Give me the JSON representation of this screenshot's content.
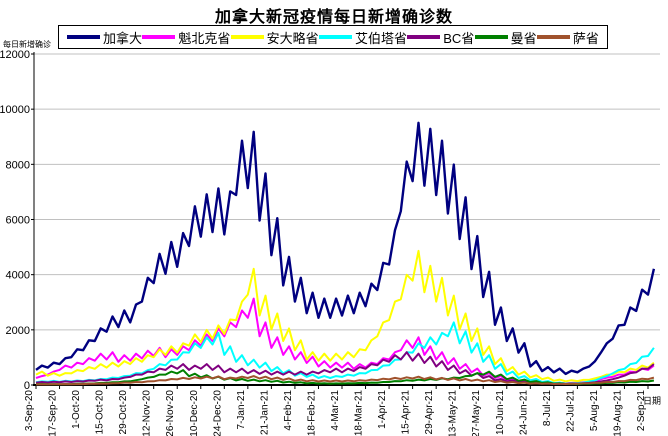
{
  "title": "加拿大新冠疫情每日新增确诊数",
  "colors": {
    "background": "#ffffff",
    "grid": "#c0c0c0",
    "axis": "#000000",
    "text": "#000000"
  },
  "chart_data": {
    "type": "line",
    "title": "加拿大新冠疫情每日新增确诊数",
    "ylabel": "每日新增确诊",
    "xlabel": "日期",
    "ylim": [
      0,
      12000
    ],
    "yticks": [
      0,
      2000,
      4000,
      6000,
      8000,
      10000,
      12000
    ],
    "grid": "horizontal-only",
    "legend_position": "top",
    "x_start_date": "3-Sep-20",
    "x_end_date": "2-Sep-21",
    "xtick_interval_days": 14,
    "xtick_labels": [
      "3-Sep-20",
      "17-Sep-20",
      "1-Oct-20",
      "15-Oct-20",
      "29-Oct-20",
      "12-Nov-20",
      "26-Nov-20",
      "10-Dec-20",
      "24-Dec-20",
      "7-Jan-21",
      "21-Jan-21",
      "4-Feb-21",
      "18-Feb-21",
      "4-Mar-21",
      "18-Mar-21",
      "1-Apr-21",
      "15-Apr-21",
      "29-Apr-21",
      "13-May-21",
      "27-May-21",
      "10-Jun-21",
      "24-Jun-21",
      "8-Jul-21",
      "22-Jul-21",
      "5-Aug-21",
      "19-Aug-21",
      "2-Sep-21"
    ],
    "sample_interval_days": 7,
    "daily_oscillation": {
      "low_factor": 0.84,
      "high_factor": 1.08
    },
    "series": [
      {
        "id": "canada",
        "name": "加拿大",
        "color": "#000080",
        "weekly_values": [
          650,
          750,
          900,
          1200,
          1500,
          1900,
          2300,
          2500,
          2700,
          3600,
          4400,
          4800,
          5100,
          6000,
          6400,
          6600,
          6500,
          8200,
          8500,
          7100,
          5600,
          4300,
          3600,
          3100,
          2900,
          2900,
          3000,
          3100,
          3400,
          4100,
          5200,
          7500,
          8800,
          8600,
          8200,
          7400,
          6300,
          5000,
          3800,
          2600,
          1900,
          1400,
          800,
          600,
          550,
          480,
          550,
          800,
          1400,
          2000,
          2600,
          3200,
          3900
        ]
      },
      {
        "id": "quebec",
        "name": "魁北克省",
        "color": "#ff00ff",
        "weekly_values": [
          300,
          450,
          650,
          750,
          900,
          1050,
          1100,
          1000,
          1050,
          1150,
          1250,
          1200,
          1300,
          1500,
          1700,
          1900,
          2100,
          2500,
          2900,
          2100,
          1600,
          1300,
          1100,
          950,
          800,
          750,
          750,
          700,
          750,
          900,
          1100,
          1500,
          1600,
          1300,
          1100,
          900,
          700,
          550,
          400,
          300,
          200,
          150,
          120,
          90,
          70,
          70,
          90,
          130,
          250,
          350,
          450,
          550,
          650
        ]
      },
      {
        "id": "ontario",
        "name": "安大略省",
        "color": "#ffff00",
        "weekly_values": [
          450,
          400,
          400,
          500,
          600,
          700,
          750,
          800,
          900,
          1000,
          1200,
          1300,
          1400,
          1700,
          1850,
          2000,
          2200,
          2800,
          3900,
          3000,
          2400,
          1900,
          1500,
          1100,
          1050,
          1050,
          1100,
          1200,
          1500,
          2100,
          2800,
          3700,
          4500,
          4000,
          3600,
          3000,
          2400,
          1900,
          1300,
          900,
          600,
          450,
          330,
          250,
          180,
          160,
          170,
          220,
          350,
          450,
          550,
          650,
          750
        ]
      },
      {
        "id": "alberta",
        "name": "艾伯塔省",
        "color": "#00ffff",
        "weekly_values": [
          120,
          140,
          140,
          150,
          170,
          200,
          250,
          300,
          400,
          500,
          700,
          850,
          1100,
          1400,
          1600,
          1750,
          1300,
          1000,
          850,
          750,
          600,
          500,
          400,
          350,
          300,
          300,
          350,
          400,
          500,
          650,
          850,
          1100,
          1400,
          1600,
          1750,
          2100,
          1800,
          1400,
          1000,
          700,
          450,
          300,
          200,
          130,
          80,
          60,
          80,
          150,
          300,
          500,
          700,
          950,
          1250
        ]
      },
      {
        "id": "bc",
        "name": "BC省",
        "color": "#800080",
        "weekly_values": [
          100,
          110,
          120,
          130,
          150,
          180,
          200,
          250,
          350,
          450,
          550,
          650,
          700,
          650,
          700,
          650,
          550,
          550,
          500,
          480,
          450,
          450,
          450,
          450,
          500,
          550,
          550,
          600,
          700,
          850,
          1000,
          1100,
          1050,
          950,
          800,
          650,
          500,
          400,
          300,
          200,
          150,
          120,
          100,
          70,
          50,
          45,
          60,
          90,
          150,
          250,
          400,
          550,
          700
        ]
      },
      {
        "id": "manitoba",
        "name": "曼省",
        "color": "#008000",
        "weekly_values": [
          35,
          30,
          30,
          40,
          50,
          70,
          90,
          120,
          160,
          250,
          350,
          450,
          500,
          380,
          330,
          280,
          230,
          200,
          180,
          160,
          140,
          110,
          90,
          70,
          60,
          55,
          60,
          70,
          80,
          100,
          130,
          160,
          180,
          200,
          220,
          250,
          300,
          400,
          450,
          350,
          250,
          180,
          130,
          90,
          60,
          45,
          40,
          50,
          70,
          90,
          110,
          130,
          150
        ]
      },
      {
        "id": "saskatchewan",
        "name": "萨省",
        "color": "#a0522d",
        "weekly_values": [
          25,
          25,
          30,
          30,
          40,
          50,
          60,
          80,
          100,
          120,
          160,
          200,
          240,
          260,
          280,
          290,
          250,
          280,
          300,
          280,
          250,
          220,
          180,
          160,
          150,
          150,
          150,
          160,
          180,
          210,
          240,
          260,
          280,
          260,
          240,
          220,
          200,
          180,
          160,
          130,
          100,
          80,
          60,
          50,
          45,
          45,
          55,
          70,
          100,
          130,
          170,
          210,
          250
        ]
      }
    ]
  }
}
